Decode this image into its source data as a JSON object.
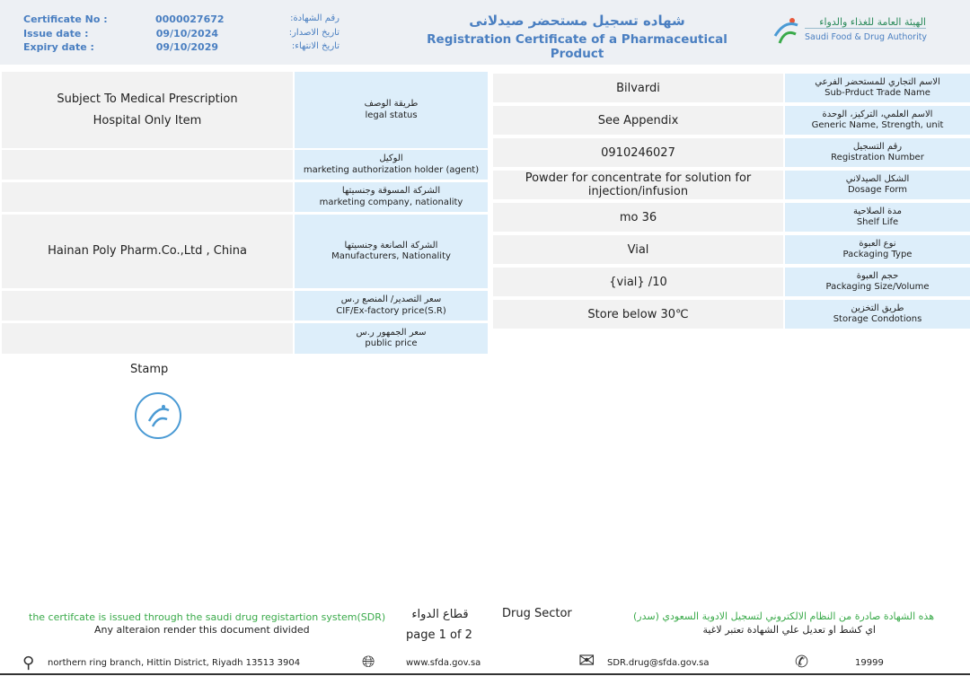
{
  "header": {
    "certificate_no_label": "Certificate No :",
    "certificate_no": "0000027672",
    "certificate_no_ar": "رقم الشهادة:",
    "issue_date_label": "Issue date :",
    "issue_date": "09/10/2024",
    "issue_date_ar": "تاريخ الاصدار:",
    "expiry_date_label": "Expiry date :",
    "expiry_date": "09/10/2029",
    "expiry_date_ar": "تاريخ الانتهاء:",
    "title_ar": "شهاده تسجيل مستحضر صيدلانى",
    "title_en": "Registration Certificate of a Pharmaceutical Product",
    "logo_ar": "الهيئة العامة للغذاء والدواء",
    "logo_en": "Saudi Food & Drug Authority"
  },
  "left_table": [
    {
      "value": "Subject To Medical Prescription",
      "value2": "Hospital Only Item",
      "label_ar": "طريقة الوصف",
      "label_en": "legal status"
    },
    {
      "value": "",
      "label_ar": "الوكيل",
      "label_en": "marketing authorization holder (agent)"
    },
    {
      "value": "",
      "label_ar": "الشركة المسوقة وجنسيتها",
      "label_en": "marketing company, nationality"
    },
    {
      "value": "Hainan Poly Pharm.Co.,Ltd , China",
      "label_ar": "الشركة الصانعة وجنسيتها",
      "label_en": "Manufacturers, Nationality"
    },
    {
      "value": "",
      "label_ar": "سعر التصدير/ المنصع ر.س",
      "label_en": "CIF/Ex-factory price(S.R)"
    },
    {
      "value": "",
      "label_ar": "سعر الجمهور ر.س",
      "label_en": "public price"
    }
  ],
  "right_table": [
    {
      "value": "Bilvardi",
      "label_ar": "الاسم التجاري للمستحضر الفرعي",
      "label_en": "Sub-Prduct Trade Name"
    },
    {
      "value": "See Appendix",
      "label_ar": "الاسم العلمي، التركيز، الوحدة",
      "label_en": "Generic Name, Strength, unit"
    },
    {
      "value": "0910246027",
      "label_ar": "رقم التسجيل",
      "label_en": "Registration Number"
    },
    {
      "value": "Powder for concentrate for solution for injection/infusion",
      "label_ar": "الشكل الصيدلاني",
      "label_en": "Dosage Form"
    },
    {
      "value": "mo 36",
      "label_ar": "مدة الصلاحية",
      "label_en": "Shelf Life"
    },
    {
      "value": "Vial",
      "label_ar": "نوع العبوة",
      "label_en": "Packaging Type"
    },
    {
      "value": "{vial} /10",
      "label_ar": "حجم العبوة",
      "label_en": "Packaging Size/Volume"
    },
    {
      "value": "Store below 30℃",
      "label_ar": "طريق التخزين",
      "label_en": "Storage Condotions"
    }
  ],
  "stamp_label": "Stamp",
  "footer": {
    "sdr_en": "the certifcate is issued through the saudi drug registartion system(SDR)",
    "alteration_en": "Any alteraion render this document divided",
    "sector_ar": "قطاع الدواء",
    "sector_en": "Drug Sector",
    "page": "page 1 of 2",
    "sdr_ar": "هذه الشهادة صادرة من النظام الالكتروني لتسجيل الادوية السعودي (سدر)",
    "alteration_ar": "اي كشط او تعديل علي الشهادة تعتبر لاغية",
    "address": "northern ring branch, Hittin District, Riyadh 13513 3904",
    "website": "www.sfda.gov.sa",
    "email": "SDR.drug@sfda.gov.sa",
    "phone": "19999"
  }
}
